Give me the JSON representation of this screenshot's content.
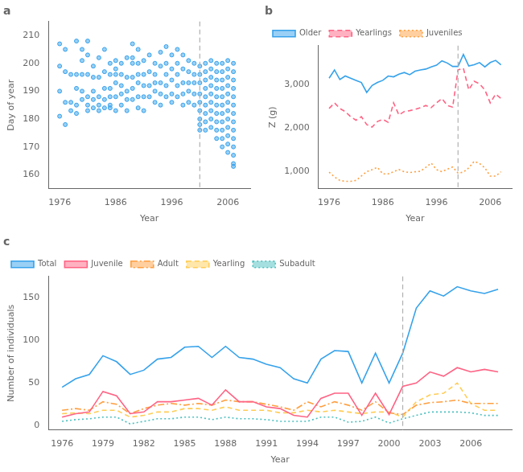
{
  "chart_data": [
    {
      "type": "scatter",
      "title": "a",
      "xlabel": "Year",
      "ylabel": "Day of year",
      "x": [
        1976,
        1976,
        1976,
        1976,
        1977,
        1977,
        1977,
        1977,
        1978,
        1978,
        1978,
        1979,
        1979,
        1979,
        1979,
        1979,
        1980,
        1980,
        1980,
        1980,
        1980,
        1981,
        1981,
        1981,
        1981,
        1981,
        1981,
        1982,
        1982,
        1982,
        1982,
        1982,
        1983,
        1983,
        1983,
        1983,
        1983,
        1984,
        1984,
        1984,
        1984,
        1984,
        1985,
        1985,
        1985,
        1985,
        1985,
        1985,
        1986,
        1986,
        1986,
        1986,
        1986,
        1986,
        1987,
        1987,
        1987,
        1987,
        1987,
        1988,
        1988,
        1988,
        1988,
        1988,
        1989,
        1989,
        1989,
        1989,
        1989,
        1989,
        1990,
        1990,
        1990,
        1990,
        1990,
        1990,
        1991,
        1991,
        1991,
        1991,
        1991,
        1992,
        1992,
        1992,
        1992,
        1993,
        1993,
        1993,
        1993,
        1993,
        1994,
        1994,
        1994,
        1994,
        1994,
        1995,
        1995,
        1995,
        1995,
        1995,
        1996,
        1996,
        1996,
        1996,
        1996,
        1997,
        1997,
        1997,
        1997,
        1997,
        1998,
        1998,
        1998,
        1998,
        1998,
        1999,
        1999,
        1999,
        1999,
        1999,
        2000,
        2000,
        2000,
        2000,
        2000,
        2001,
        2001,
        2001,
        2001,
        2001,
        2001,
        2001,
        2001,
        2001,
        2002,
        2002,
        2002,
        2002,
        2002,
        2002,
        2002,
        2002,
        2002,
        2003,
        2003,
        2003,
        2003,
        2003,
        2003,
        2003,
        2003,
        2003,
        2004,
        2004,
        2004,
        2004,
        2004,
        2004,
        2004,
        2004,
        2004,
        2004,
        2005,
        2005,
        2005,
        2005,
        2005,
        2005,
        2005,
        2005,
        2005,
        2005,
        2005,
        2006,
        2006,
        2006,
        2006,
        2006,
        2006,
        2006,
        2006,
        2006,
        2006,
        2006,
        2006,
        2007,
        2007,
        2007,
        2007,
        2007,
        2007,
        2007,
        2007,
        2007,
        2007,
        2007,
        2007,
        2007,
        2007
      ],
      "values": [
        207,
        199,
        190,
        181,
        205,
        197,
        186,
        178,
        196,
        186,
        183,
        208,
        196,
        191,
        185,
        182,
        205,
        201,
        196,
        190,
        187,
        208,
        203,
        196,
        188,
        185,
        183,
        199,
        195,
        190,
        187,
        184,
        202,
        195,
        188,
        185,
        183,
        205,
        197,
        191,
        187,
        184,
        200,
        196,
        191,
        188,
        185,
        184,
        201,
        198,
        196,
        193,
        188,
        183,
        200,
        196,
        192,
        189,
        185,
        202,
        195,
        190,
        187,
        183,
        207,
        202,
        200,
        195,
        191,
        187,
        205,
        200,
        196,
        193,
        188,
        184,
        201,
        196,
        192,
        188,
        183,
        203,
        197,
        192,
        188,
        200,
        196,
        193,
        190,
        186,
        204,
        199,
        193,
        189,
        185,
        206,
        200,
        196,
        192,
        188,
        203,
        198,
        194,
        189,
        186,
        205,
        200,
        196,
        192,
        188,
        203,
        198,
        193,
        189,
        185,
        201,
        197,
        193,
        190,
        186,
        200,
        196,
        193,
        189,
        185,
        199,
        196,
        193,
        189,
        186,
        183,
        180,
        178,
        176,
        200,
        197,
        194,
        191,
        188,
        185,
        182,
        179,
        176,
        201,
        198,
        195,
        192,
        189,
        186,
        183,
        180,
        177,
        200,
        197,
        194,
        191,
        188,
        185,
        182,
        179,
        176,
        173,
        200,
        197,
        194,
        191,
        188,
        185,
        182,
        179,
        176,
        173,
        170,
        201,
        198,
        195,
        192,
        189,
        186,
        183,
        180,
        177,
        174,
        171,
        168,
        200,
        197,
        194,
        191,
        188,
        185,
        182,
        179,
        176,
        173,
        170,
        167,
        164,
        163
      ],
      "xlim": [
        1974,
        2010
      ],
      "ylim": [
        155,
        215
      ],
      "xticks": [
        1976,
        1986,
        1996,
        2006
      ],
      "yticks": [
        160,
        170,
        180,
        190,
        200,
        210
      ],
      "grid": false,
      "vline": {
        "x": 2001,
        "color": "#b0b0b0",
        "line_style": "dashed"
      }
    },
    {
      "type": "line",
      "title": "b",
      "xlabel": "Year",
      "ylabel": "Z (g)",
      "x": [
        1976,
        1977,
        1978,
        1979,
        1980,
        1981,
        1982,
        1983,
        1984,
        1985,
        1986,
        1987,
        1988,
        1989,
        1990,
        1991,
        1992,
        1993,
        1994,
        1995,
        1996,
        1997,
        1998,
        1999,
        2000,
        2001,
        2002,
        2003,
        2004,
        2005,
        2006,
        2007,
        2008
      ],
      "series": [
        {
          "name": "Older",
          "line_style": "solid",
          "values": [
            3150,
            3340,
            3120,
            3200,
            3150,
            3100,
            3050,
            2820,
            2980,
            3050,
            3100,
            3200,
            3180,
            3240,
            3280,
            3230,
            3310,
            3340,
            3360,
            3410,
            3450,
            3550,
            3500,
            3420,
            3420,
            3700,
            3430,
            3460,
            3510,
            3410,
            3510,
            3560,
            3460
          ]
        },
        {
          "name": "Yearlings",
          "line_style": "dashed",
          "values": [
            2450,
            2580,
            2450,
            2380,
            2260,
            2180,
            2260,
            2080,
            2020,
            2150,
            2200,
            2130,
            2580,
            2300,
            2380,
            2400,
            2430,
            2470,
            2520,
            2470,
            2580,
            2680,
            2520,
            2480,
            3340,
            3380,
            2880,
            3080,
            3020,
            2880,
            2580,
            2780,
            2680
          ]
        },
        {
          "name": "Juveniles",
          "line_style": "dotted",
          "values": [
            980,
            870,
            790,
            770,
            770,
            790,
            890,
            990,
            1040,
            1090,
            940,
            940,
            990,
            1040,
            990,
            970,
            990,
            1000,
            1090,
            1190,
            1040,
            990,
            1050,
            1100,
            960,
            980,
            1080,
            1230,
            1180,
            1080,
            890,
            890,
            990
          ]
        }
      ],
      "xlim": [
        1974,
        2010
      ],
      "ylim": [
        600,
        3900
      ],
      "xticks": [
        1976,
        1986,
        1996,
        2006
      ],
      "yticks": [
        {
          "value": 1000,
          "label": "1,000"
        },
        {
          "value": 2000,
          "label": "2,000"
        },
        {
          "value": 3000,
          "label": "3,000"
        }
      ],
      "grid": false,
      "legend": "upper left",
      "vline": {
        "x": 2000,
        "color": "#b0b0b0",
        "line_style": "dashed"
      }
    },
    {
      "type": "line",
      "title": "c",
      "xlabel": "Year",
      "ylabel": "Number of individuals",
      "x": [
        1976,
        1977,
        1978,
        1979,
        1980,
        1981,
        1982,
        1983,
        1984,
        1985,
        1986,
        1987,
        1988,
        1989,
        1990,
        1991,
        1992,
        1993,
        1994,
        1995,
        1996,
        1997,
        1998,
        1999,
        2000,
        2001,
        2002,
        2003,
        2004,
        2005,
        2006,
        2007,
        2008
      ],
      "series": [
        {
          "name": "Total",
          "line_style": "solid",
          "values": [
            45,
            55,
            60,
            82,
            75,
            60,
            65,
            78,
            80,
            92,
            93,
            80,
            93,
            80,
            78,
            72,
            68,
            55,
            50,
            78,
            88,
            87,
            50,
            85,
            50,
            85,
            138,
            158,
            152,
            163,
            158,
            155,
            160
          ]
        },
        {
          "name": "Juvenile",
          "line_style": "solid",
          "values": [
            10,
            14,
            16,
            40,
            35,
            14,
            16,
            28,
            28,
            30,
            32,
            24,
            42,
            28,
            28,
            22,
            20,
            12,
            10,
            32,
            38,
            38,
            12,
            38,
            13,
            46,
            50,
            63,
            58,
            68,
            63,
            66,
            63
          ]
        },
        {
          "name": "Adult",
          "line_style": "dashdot",
          "values": [
            18,
            20,
            18,
            28,
            25,
            14,
            20,
            24,
            26,
            24,
            26,
            24,
            30,
            28,
            28,
            25,
            22,
            18,
            28,
            22,
            28,
            24,
            18,
            28,
            15,
            13,
            24,
            27,
            28,
            30,
            26,
            26,
            26
          ]
        },
        {
          "name": "Yearling",
          "line_style": "dashed",
          "values": [
            14,
            15,
            14,
            18,
            18,
            10,
            12,
            16,
            16,
            20,
            20,
            18,
            22,
            18,
            18,
            18,
            15,
            15,
            18,
            16,
            18,
            16,
            14,
            16,
            16,
            10,
            28,
            36,
            38,
            50,
            26,
            18,
            18
          ]
        },
        {
          "name": "Subadult",
          "line_style": "dotted",
          "values": [
            5,
            7,
            8,
            10,
            10,
            2,
            5,
            8,
            8,
            10,
            10,
            7,
            10,
            8,
            8,
            7,
            5,
            5,
            5,
            10,
            10,
            4,
            5,
            10,
            3,
            8,
            12,
            16,
            16,
            16,
            15,
            12,
            12
          ]
        }
      ],
      "xlim": [
        1975,
        2009
      ],
      "ylim": [
        -5,
        175
      ],
      "xticks": [
        1976,
        1979,
        1982,
        1985,
        1988,
        1991,
        1994,
        1997,
        2000,
        2003,
        2006
      ],
      "yticks": [
        0,
        50,
        100,
        150
      ],
      "grid": false,
      "legend": "upper left",
      "vline": {
        "x": 2001,
        "color": "#b0b0b0",
        "line_style": "dashed"
      }
    }
  ]
}
